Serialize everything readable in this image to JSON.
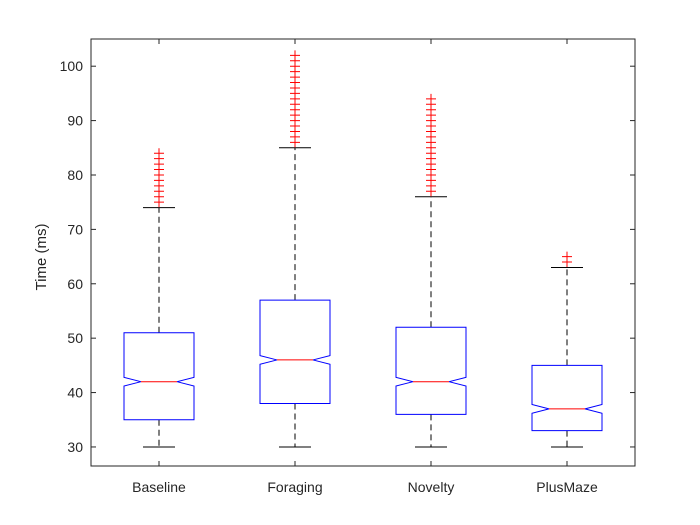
{
  "chart_data": {
    "type": "boxplot",
    "title": "",
    "xlabel": "",
    "ylabel": "Time (ms)",
    "ylim": [
      26.5,
      105
    ],
    "yticks": [
      30,
      40,
      50,
      60,
      70,
      80,
      90,
      100
    ],
    "grid": false,
    "notched": true,
    "categories": [
      "Baseline",
      "Foraging",
      "Novelty",
      "PlusMaze"
    ],
    "boxes": [
      {
        "name": "Baseline",
        "whisker_low": 30,
        "q1": 35,
        "median": 42,
        "q3": 51,
        "whisker_high": 74,
        "notch_low": 41.2,
        "notch_high": 42.8,
        "outliers": [
          75,
          76,
          77,
          78,
          79,
          80,
          81,
          82,
          83,
          84
        ]
      },
      {
        "name": "Foraging",
        "whisker_low": 30,
        "q1": 38,
        "median": 46,
        "q3": 57,
        "whisker_high": 85,
        "notch_low": 45.2,
        "notch_high": 46.8,
        "outliers": [
          86,
          87,
          88,
          89,
          90,
          91,
          92,
          93,
          94,
          95,
          96,
          97,
          98,
          99,
          100,
          101,
          102
        ]
      },
      {
        "name": "Novelty",
        "whisker_low": 30,
        "q1": 36,
        "median": 42,
        "q3": 52,
        "whisker_high": 76,
        "notch_low": 41.2,
        "notch_high": 42.8,
        "outliers": [
          77,
          78,
          79,
          80,
          81,
          82,
          83,
          84,
          85,
          86,
          87,
          88,
          89,
          90,
          91,
          92,
          93,
          94
        ]
      },
      {
        "name": "PlusMaze",
        "whisker_low": 30,
        "q1": 33,
        "median": 37,
        "q3": 45,
        "whisker_high": 63,
        "notch_low": 36.2,
        "notch_high": 37.8,
        "outliers": [
          64,
          65
        ]
      }
    ],
    "colors": {
      "box": "#0000ff",
      "median": "#ff0000",
      "outlier": "#ff0000",
      "whisker": "#000000",
      "axis": "#262626"
    }
  }
}
